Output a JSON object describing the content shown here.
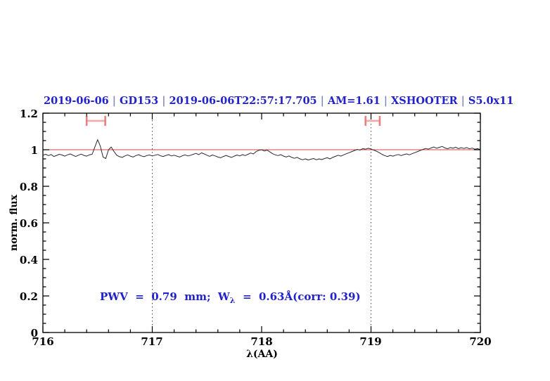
{
  "figure": {
    "title": {
      "segments": [
        "2019-06-06",
        "GD153",
        "2019-06-06T22:57:17.705",
        "AM=1.61",
        "XSHOOTER",
        "S5.0x11"
      ],
      "separator": "|",
      "color": "#2222cc"
    },
    "annotation": {
      "prefix": "PWV  =  0.79  mm;  W",
      "subscript": "λ",
      "suffix": "  =  0.63Å(corr: 0.39)",
      "color": "#2222cc"
    }
  },
  "chart_data": {
    "type": "line",
    "title": "2019-06-06 | GD153 | 2019-06-06T22:57:17.705 | AM=1.61 | XSHOOTER | S5.0x11",
    "xlabel": "λ(AA)",
    "ylabel": "norm. flux",
    "xlim": [
      716,
      720
    ],
    "ylim": [
      0,
      1.2
    ],
    "x_ticks": [
      716,
      717,
      718,
      719,
      720
    ],
    "x_tick_labels": [
      "716",
      "717",
      "718",
      "719",
      "720"
    ],
    "y_ticks": [
      0,
      0.2,
      0.4,
      0.6,
      0.8,
      1,
      1.2
    ],
    "y_tick_labels": [
      "0",
      "0.2",
      "0.4",
      "0.6",
      "0.8",
      "1",
      "1.2"
    ],
    "x_minor_step": 0.2,
    "y_minor_step": 0.05,
    "grid": false,
    "dotted_vlines": [
      717,
      719
    ],
    "reference_line": {
      "y": 1.0,
      "color": "#d64545"
    },
    "range_markers": [
      {
        "x_min": 716.4,
        "x_max": 716.57,
        "y": 1.158,
        "color": "#f4a9a9",
        "cap_color": "#e87e7e"
      },
      {
        "x_min": 718.95,
        "x_max": 719.08,
        "y": 1.158,
        "color": "#f4a9a9",
        "cap_color": "#e87e7e"
      }
    ],
    "annotation": {
      "text": "PWV = 0.79 mm; W_λ = 0.63Å(corr: 0.39)",
      "x": 716.52,
      "y": 0.2
    },
    "series": [
      {
        "name": "normalized spectrum",
        "color": "#2a2a2a",
        "x_start": 716.0,
        "x_step": 0.025,
        "values": [
          0.97,
          0.975,
          0.968,
          0.974,
          0.963,
          0.969,
          0.975,
          0.971,
          0.965,
          0.972,
          0.977,
          0.97,
          0.963,
          0.97,
          0.976,
          0.969,
          0.965,
          0.972,
          0.975,
          1.015,
          1.055,
          1.02,
          0.96,
          0.952,
          1.0,
          1.015,
          0.99,
          0.97,
          0.962,
          0.958,
          0.966,
          0.972,
          0.965,
          0.96,
          0.968,
          0.973,
          0.966,
          0.962,
          0.968,
          0.971,
          0.966,
          0.97,
          0.974,
          0.967,
          0.963,
          0.969,
          0.973,
          0.966,
          0.97,
          0.965,
          0.96,
          0.967,
          0.972,
          0.966,
          0.97,
          0.975,
          0.98,
          0.973,
          0.983,
          0.977,
          0.97,
          0.964,
          0.971,
          0.966,
          0.96,
          0.956,
          0.963,
          0.969,
          0.963,
          0.958,
          0.965,
          0.971,
          0.966,
          0.973,
          0.968,
          0.975,
          0.982,
          0.977,
          0.99,
          0.997,
          1.0,
          0.993,
          0.998,
          0.988,
          0.978,
          0.972,
          0.968,
          0.973,
          0.965,
          0.96,
          0.966,
          0.958,
          0.953,
          0.958,
          0.95,
          0.945,
          0.95,
          0.944,
          0.948,
          0.952,
          0.945,
          0.95,
          0.946,
          0.952,
          0.956,
          0.95,
          0.958,
          0.964,
          0.97,
          0.965,
          0.972,
          0.978,
          0.984,
          0.99,
          0.996,
          1.002,
          0.998,
          1.006,
          1.003,
          1.008,
          1.004,
          0.998,
          0.992,
          0.984,
          0.975,
          0.968,
          0.963,
          0.969,
          0.965,
          0.97,
          0.974,
          0.968,
          0.973,
          0.977,
          0.972,
          0.978,
          0.984,
          0.99,
          0.996,
          1.002,
          1.007,
          1.003,
          1.01,
          1.015,
          1.008,
          1.013,
          1.018,
          1.01,
          1.005,
          1.012,
          1.008,
          1.014,
          1.006,
          1.011,
          1.007,
          1.012,
          1.005,
          1.009,
          1.003,
          1.006,
          1.0
        ]
      }
    ],
    "legend": null
  }
}
